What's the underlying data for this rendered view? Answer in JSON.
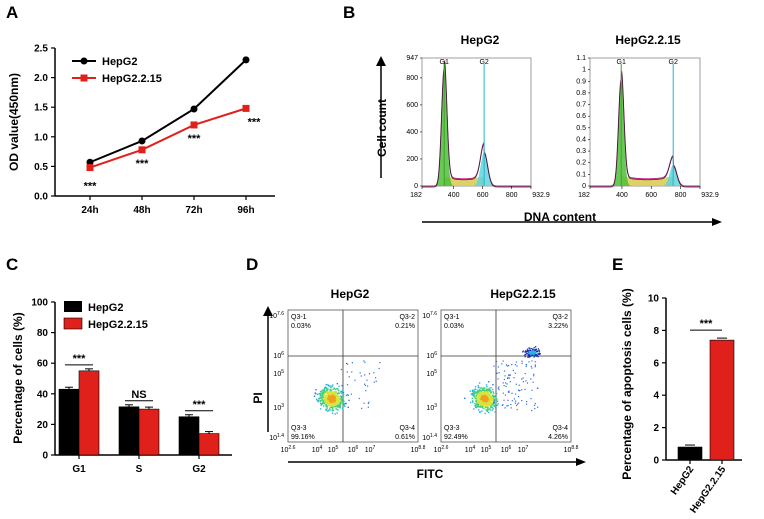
{
  "chart_data": [
    {
      "panel": "A",
      "type": "line",
      "ylabel": "OD value(450nm)",
      "categories": [
        "24h",
        "48h",
        "72h",
        "96h"
      ],
      "yticks": [
        "0.0",
        "0.5",
        "1.0",
        "1.5",
        "2.0",
        "2.5"
      ],
      "ylim": [
        0,
        2.5
      ],
      "series": [
        {
          "name": "HepG2",
          "values": [
            0.57,
            0.93,
            1.47,
            2.3
          ],
          "color": "#000000",
          "marker": "circle"
        },
        {
          "name": "HepG2.2.15",
          "values": [
            0.48,
            0.78,
            1.2,
            1.48
          ],
          "color": "#e0201b",
          "marker": "square"
        }
      ],
      "annotations": [
        "***",
        "***",
        "***",
        "***"
      ]
    },
    {
      "panel": "B",
      "type": "area",
      "xlabel": "DNA content",
      "ylabel": "Cell count",
      "plots": [
        {
          "title": "HepG2",
          "yticks": [
            "0",
            "200",
            "400",
            "600",
            "800",
            "947"
          ],
          "xticks": [
            "182",
            "400",
            "600",
            "800",
            "932.9"
          ],
          "xlim": [
            182,
            932.9
          ],
          "ylim": [
            0,
            947
          ],
          "g1_label": "G1",
          "g1_pos": 335,
          "g2_label": "G2",
          "g2_pos": 610,
          "g1_peak": 870,
          "g2_peak": 250
        },
        {
          "title": "HepG2.2.15",
          "yticks": [
            "0",
            "0.1",
            "0.2",
            "0.3",
            "0.4",
            "0.5",
            "0.6",
            "0.7",
            "0.8",
            "0.9",
            "1",
            "1.1"
          ],
          "xticks": [
            "182",
            "400",
            "600",
            "800",
            "932.9"
          ],
          "xlim": [
            182,
            932.9
          ],
          "ylim": [
            0,
            1.1
          ],
          "g1_label": "G1",
          "g1_pos": 395,
          "g2_label": "G2",
          "g2_pos": 750,
          "g1_peak": 0.92,
          "g2_peak": 0.18
        }
      ]
    },
    {
      "panel": "C",
      "type": "bar",
      "ylabel": "Percentage of cells (%)",
      "categories": [
        "G1",
        "S",
        "G2"
      ],
      "yticks": [
        "0",
        "20",
        "40",
        "60",
        "80",
        "100"
      ],
      "ylim": [
        0,
        100
      ],
      "series": [
        {
          "name": "HepG2",
          "values": [
            43,
            31.5,
            25
          ],
          "color": "#000000"
        },
        {
          "name": "HepG2.2.15",
          "values": [
            55,
            30,
            14
          ],
          "color": "#e0201b"
        }
      ],
      "annotations": [
        "***",
        "NS",
        "***"
      ]
    },
    {
      "panel": "D",
      "type": "scatter",
      "xlabel": "FITC",
      "ylabel": "PI",
      "plots": [
        {
          "title": "HepG2",
          "quadrants": [
            {
              "label": "Q3-1",
              "value": "0.03%"
            },
            {
              "label": "Q3-2",
              "value": "0.21%"
            },
            {
              "label": "Q3-3",
              "value": "99.16%"
            },
            {
              "label": "Q3-4",
              "value": "0.61%"
            }
          ]
        },
        {
          "title": "HepG2.2.15",
          "quadrants": [
            {
              "label": "Q3-1",
              "value": "0.03%"
            },
            {
              "label": "Q3-2",
              "value": "3.22%"
            },
            {
              "label": "Q3-3",
              "value": "92.49%"
            },
            {
              "label": "Q3-4",
              "value": "4.26%"
            }
          ]
        }
      ],
      "yaxis_base": "10",
      "ytick_exponents": [
        "1.4",
        "3",
        "5",
        "6",
        "7.6"
      ],
      "xaxis_base": "10",
      "xtick_exponents": [
        "2.6",
        "4",
        "5",
        "6",
        "7",
        "8.8"
      ]
    },
    {
      "panel": "E",
      "type": "bar",
      "ylabel": "Percentage of apoptosis cells (%)",
      "categories": [
        "HepG2",
        "HepG2.2.15"
      ],
      "yticks": [
        "0",
        "2",
        "4",
        "6",
        "8",
        "10"
      ],
      "ylim": [
        0,
        10
      ],
      "values": [
        0.8,
        7.4
      ],
      "colors": [
        "#000000",
        "#e0201b"
      ],
      "annotation": "***"
    }
  ],
  "panel_labels": [
    "A",
    "B",
    "C",
    "D",
    "E"
  ]
}
